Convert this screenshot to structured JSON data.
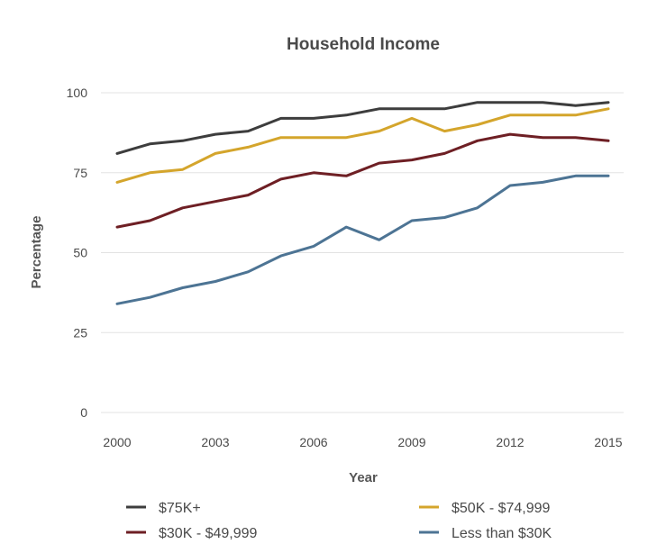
{
  "chart_data": {
    "type": "line",
    "title": "Household Income",
    "xlabel": "Year",
    "ylabel": "Percentage",
    "x": [
      2000,
      2001,
      2002,
      2003,
      2004,
      2005,
      2006,
      2007,
      2008,
      2009,
      2010,
      2011,
      2012,
      2013,
      2014,
      2015
    ],
    "xticks": [
      "2000",
      "2003",
      "2006",
      "2009",
      "2012",
      "2015"
    ],
    "yticks": [
      "0",
      "25",
      "50",
      "75",
      "100"
    ],
    "ylim": [
      0,
      100
    ],
    "grid": "horizontal",
    "legend_position": "bottom",
    "series": [
      {
        "name": "$75K+",
        "color": "#3d3d3d",
        "values": [
          81,
          84,
          85,
          87,
          88,
          92,
          92,
          93,
          95,
          95,
          95,
          97,
          97,
          97,
          96,
          97
        ]
      },
      {
        "name": "$50K - $74,999",
        "color": "#d4a52c",
        "values": [
          72,
          75,
          76,
          81,
          83,
          86,
          86,
          86,
          88,
          92,
          88,
          90,
          93,
          93,
          93,
          95
        ]
      },
      {
        "name": "$30K - $49,999",
        "color": "#6e1f24",
        "values": [
          58,
          60,
          64,
          66,
          68,
          73,
          75,
          74,
          78,
          79,
          81,
          85,
          87,
          86,
          86,
          85
        ]
      },
      {
        "name": "Less than $30K",
        "color": "#4d7494",
        "values": [
          34,
          36,
          39,
          41,
          44,
          49,
          52,
          58,
          54,
          60,
          61,
          64,
          71,
          72,
          74,
          74
        ]
      }
    ]
  }
}
